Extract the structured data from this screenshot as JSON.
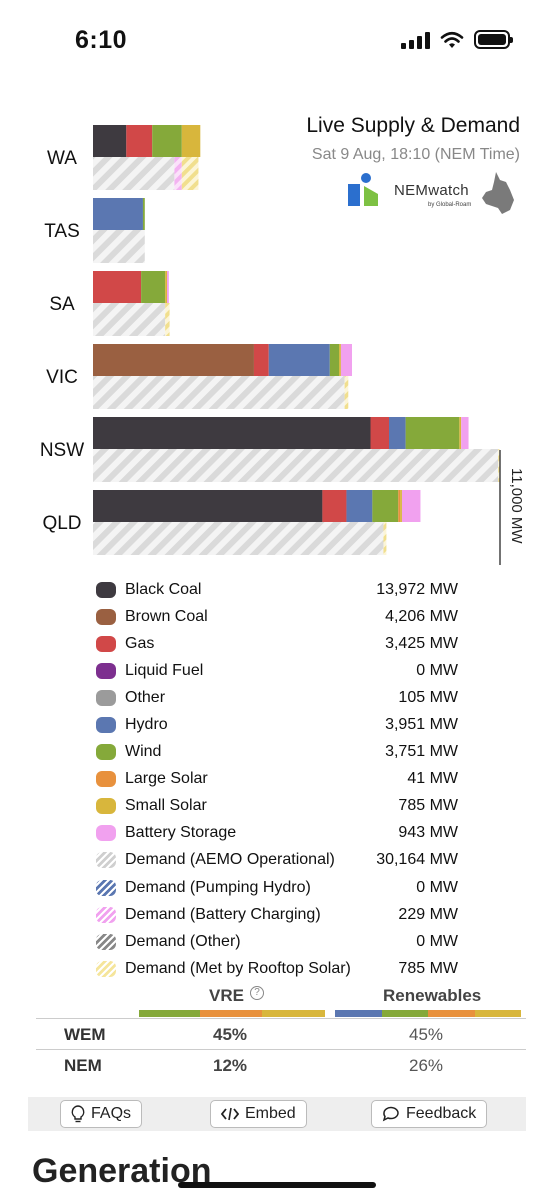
{
  "status_bar": {
    "time": "6:10"
  },
  "header": {
    "title": "Live Supply & Demand",
    "subtitle": "Sat 9 Aug, 18:10 (NEM Time)",
    "logo_text": "NEMwatch",
    "logo_subtext": "by Global-Roam"
  },
  "chart_data": {
    "type": "bar",
    "orientation": "horizontal-stacked",
    "scale_label": "11,000 MW",
    "scale_max_mw": 11000,
    "categories": [
      "WA",
      "TAS",
      "SA",
      "VIC",
      "NSW",
      "QLD"
    ],
    "supply_series": [
      {
        "name": "Black Coal",
        "color": "#3e3a40",
        "values": [
          900,
          0,
          0,
          0,
          7500,
          6200
        ]
      },
      {
        "name": "Brown Coal",
        "color": "#9a6041",
        "values": [
          0,
          0,
          0,
          4350,
          0,
          0
        ]
      },
      {
        "name": "Gas",
        "color": "#d14848",
        "values": [
          700,
          0,
          1300,
          400,
          500,
          650
        ]
      },
      {
        "name": "Hydro",
        "color": "#5b77b1",
        "values": [
          0,
          1350,
          0,
          1650,
          450,
          700
        ]
      },
      {
        "name": "Wind",
        "color": "#85a93a",
        "values": [
          800,
          50,
          650,
          250,
          1450,
          700
        ]
      },
      {
        "name": "Large Solar",
        "color": "#e8913d",
        "values": [
          0,
          0,
          0,
          0,
          0,
          50
        ]
      },
      {
        "name": "Small Solar",
        "color": "#d8b63c",
        "values": [
          500,
          0,
          50,
          50,
          50,
          50
        ]
      },
      {
        "name": "Battery Storage",
        "color": "#f1a1ef",
        "values": [
          0,
          0,
          50,
          300,
          200,
          500
        ]
      }
    ],
    "demand_series": [
      {
        "name": "Demand (AEMO Operational)",
        "values": [
          2200,
          1400,
          1950,
          6800,
          10950,
          7850
        ]
      },
      {
        "name": "Demand (Battery Charging)",
        "values": [
          200,
          0,
          0,
          0,
          0,
          0
        ]
      },
      {
        "name": "Demand (Met by Rooftop Solar)",
        "values": [
          450,
          0,
          120,
          100,
          50,
          80
        ]
      }
    ]
  },
  "legend": [
    {
      "label": "Black Coal",
      "value": "13,972 MW",
      "color": "#3e3a40",
      "style": "solid"
    },
    {
      "label": "Brown Coal",
      "value": "4,206 MW",
      "color": "#9a6041",
      "style": "solid"
    },
    {
      "label": "Gas",
      "value": "3,425 MW",
      "color": "#d14848",
      "style": "solid"
    },
    {
      "label": "Liquid Fuel",
      "value": "0 MW",
      "color": "#7d2f8f",
      "style": "solid"
    },
    {
      "label": "Other",
      "value": "105 MW",
      "color": "#9b9b9b",
      "style": "solid"
    },
    {
      "label": "Hydro",
      "value": "3,951 MW",
      "color": "#5b77b1",
      "style": "solid"
    },
    {
      "label": "Wind",
      "value": "3,751 MW",
      "color": "#85a93a",
      "style": "solid"
    },
    {
      "label": "Large Solar",
      "value": "41 MW",
      "color": "#e8913d",
      "style": "solid"
    },
    {
      "label": "Small Solar",
      "value": "785 MW",
      "color": "#d8b63c",
      "style": "solid"
    },
    {
      "label": "Battery Storage",
      "value": "943 MW",
      "color": "#f1a1ef",
      "style": "solid"
    },
    {
      "label": "Demand (AEMO Operational)",
      "value": "30,164 MW",
      "color": "#cfcfcf",
      "style": "hatch"
    },
    {
      "label": "Demand (Pumping Hydro)",
      "value": "0 MW",
      "color": "#5b77b1",
      "style": "hatch"
    },
    {
      "label": "Demand (Battery Charging)",
      "value": "229 MW",
      "color": "#f1a1ef",
      "style": "hatch"
    },
    {
      "label": "Demand (Other)",
      "value": "0 MW",
      "color": "#888888",
      "style": "hatch"
    },
    {
      "label": "Demand (Met by Rooftop Solar)",
      "value": "785 MW",
      "color": "#f5e59b",
      "style": "hatch"
    }
  ],
  "renewables": {
    "vre_label": "VRE",
    "renewables_label": "Renewables",
    "help_icon": "?",
    "rows": [
      {
        "region": "WEM",
        "vre": "45%",
        "renewables": "45%"
      },
      {
        "region": "NEM",
        "vre": "12%",
        "renewables": "26%"
      }
    ]
  },
  "buttons": {
    "faqs": "FAQs",
    "embed": "Embed",
    "feedback": "Feedback"
  },
  "section_title": "Generation"
}
